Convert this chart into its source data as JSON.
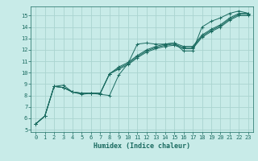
{
  "xlabel": "Humidex (Indice chaleur)",
  "ylabel": "",
  "bg_color": "#c8ebe8",
  "grid_color": "#aad4d0",
  "line_color": "#1a6b60",
  "xlim": [
    -0.5,
    23.5
  ],
  "ylim": [
    4.8,
    15.8
  ],
  "xticks": [
    0,
    1,
    2,
    3,
    4,
    5,
    6,
    7,
    8,
    9,
    10,
    11,
    12,
    13,
    14,
    15,
    16,
    17,
    18,
    19,
    20,
    21,
    22,
    23
  ],
  "yticks": [
    5,
    6,
    7,
    8,
    9,
    10,
    11,
    12,
    13,
    14,
    15
  ],
  "series": [
    [
      0,
      5.5
    ],
    [
      1,
      6.2
    ],
    [
      2,
      8.8
    ],
    [
      3,
      8.9
    ],
    [
      4,
      8.3
    ],
    [
      5,
      8.1
    ],
    [
      6,
      8.2
    ],
    [
      7,
      8.1
    ],
    [
      8,
      8.0
    ],
    [
      9,
      9.8
    ],
    [
      10,
      10.8
    ],
    [
      11,
      12.5
    ],
    [
      12,
      12.6
    ],
    [
      13,
      12.5
    ],
    [
      14,
      12.5
    ],
    [
      15,
      12.6
    ],
    [
      16,
      11.9
    ],
    [
      17,
      11.9
    ],
    [
      18,
      14.0
    ],
    [
      19,
      14.5
    ],
    [
      20,
      14.8
    ],
    [
      21,
      15.2
    ],
    [
      22,
      15.4
    ],
    [
      23,
      15.2
    ]
  ],
  "series2": [
    [
      0,
      5.5
    ],
    [
      1,
      6.2
    ],
    [
      2,
      8.8
    ],
    [
      3,
      8.7
    ],
    [
      4,
      8.3
    ],
    [
      5,
      8.2
    ],
    [
      6,
      8.2
    ],
    [
      7,
      8.2
    ],
    [
      8,
      9.9
    ],
    [
      9,
      10.5
    ],
    [
      10,
      10.9
    ],
    [
      11,
      11.5
    ],
    [
      12,
      12.0
    ],
    [
      13,
      12.3
    ],
    [
      14,
      12.5
    ],
    [
      15,
      12.6
    ],
    [
      16,
      12.3
    ],
    [
      17,
      12.3
    ],
    [
      18,
      13.3
    ],
    [
      19,
      13.8
    ],
    [
      20,
      14.2
    ],
    [
      21,
      14.8
    ],
    [
      22,
      15.2
    ],
    [
      23,
      15.2
    ]
  ],
  "series3": [
    [
      0,
      5.5
    ],
    [
      1,
      6.2
    ],
    [
      2,
      8.8
    ],
    [
      3,
      8.7
    ],
    [
      4,
      8.3
    ],
    [
      5,
      8.2
    ],
    [
      6,
      8.2
    ],
    [
      7,
      8.2
    ],
    [
      8,
      9.9
    ],
    [
      9,
      10.4
    ],
    [
      10,
      10.8
    ],
    [
      11,
      11.4
    ],
    [
      12,
      11.9
    ],
    [
      13,
      12.2
    ],
    [
      14,
      12.4
    ],
    [
      15,
      12.5
    ],
    [
      16,
      12.2
    ],
    [
      17,
      12.2
    ],
    [
      18,
      13.2
    ],
    [
      19,
      13.7
    ],
    [
      20,
      14.1
    ],
    [
      21,
      14.7
    ],
    [
      22,
      15.1
    ],
    [
      23,
      15.1
    ]
  ],
  "series4": [
    [
      0,
      5.5
    ],
    [
      1,
      6.2
    ],
    [
      2,
      8.8
    ],
    [
      3,
      8.7
    ],
    [
      4,
      8.3
    ],
    [
      5,
      8.2
    ],
    [
      6,
      8.2
    ],
    [
      7,
      8.2
    ],
    [
      8,
      9.9
    ],
    [
      9,
      10.3
    ],
    [
      10,
      10.7
    ],
    [
      11,
      11.3
    ],
    [
      12,
      11.8
    ],
    [
      13,
      12.1
    ],
    [
      14,
      12.3
    ],
    [
      15,
      12.4
    ],
    [
      16,
      12.1
    ],
    [
      17,
      12.1
    ],
    [
      18,
      13.1
    ],
    [
      19,
      13.6
    ],
    [
      20,
      14.0
    ],
    [
      21,
      14.6
    ],
    [
      22,
      15.0
    ],
    [
      23,
      15.0
    ]
  ]
}
